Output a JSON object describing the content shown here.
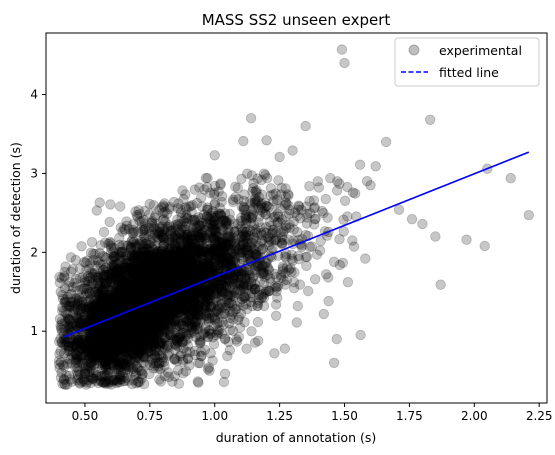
{
  "chart_data": {
    "type": "scatter",
    "title": "MASS SS2 unseen expert",
    "xlabel": "duration of annotation (s)",
    "ylabel": "duration of detection (s)",
    "xlim": [
      0.35,
      2.28
    ],
    "ylim": [
      0.09,
      4.78
    ],
    "x_ticks": [
      "0.50",
      "0.75",
      "1.00",
      "1.25",
      "1.50",
      "1.75",
      "2.00",
      "2.25"
    ],
    "y_ticks": [
      "1",
      "2",
      "3",
      "4"
    ],
    "grid": false,
    "legend_position": "top-right",
    "legend": [
      {
        "label": "experimental",
        "marker": "circle",
        "color": "#000000",
        "alpha": 0.25
      },
      {
        "label": "fitted line",
        "marker": "dashed-line",
        "color": "#0000ff"
      }
    ],
    "fitted_line": {
      "x": [
        0.42,
        2.21
      ],
      "y": [
        0.93,
        3.27
      ],
      "color": "#0000ff"
    },
    "cloud_regions": [
      {
        "x_center": 0.76,
        "y_center": 1.45,
        "x_spread": 0.16,
        "y_spread": 0.42,
        "count": 3200
      },
      {
        "x_center": 1.05,
        "y_center": 1.9,
        "x_spread": 0.2,
        "y_spread": 0.5,
        "count": 900
      },
      {
        "x_center": 0.6,
        "y_center": 0.95,
        "x_spread": 0.09,
        "y_spread": 0.28,
        "count": 700
      }
    ],
    "outliers": [
      {
        "x": 1.49,
        "y": 4.57
      },
      {
        "x": 1.5,
        "y": 4.4
      },
      {
        "x": 1.83,
        "y": 3.68
      },
      {
        "x": 1.35,
        "y": 3.6
      },
      {
        "x": 1.14,
        "y": 3.7
      },
      {
        "x": 1.66,
        "y": 3.4
      },
      {
        "x": 2.21,
        "y": 2.47
      },
      {
        "x": 2.05,
        "y": 3.06
      },
      {
        "x": 1.97,
        "y": 2.16
      },
      {
        "x": 2.04,
        "y": 2.08
      },
      {
        "x": 1.87,
        "y": 1.59
      },
      {
        "x": 1.53,
        "y": 2.15
      },
      {
        "x": 1.46,
        "y": 1.88
      },
      {
        "x": 1.42,
        "y": 1.22
      },
      {
        "x": 1.47,
        "y": 0.9
      },
      {
        "x": 1.46,
        "y": 0.6
      },
      {
        "x": 1.27,
        "y": 0.78
      },
      {
        "x": 1.23,
        "y": 0.72
      },
      {
        "x": 1.04,
        "y": 0.46
      },
      {
        "x": 0.98,
        "y": 0.5
      },
      {
        "x": 0.42,
        "y": 0.38
      },
      {
        "x": 0.45,
        "y": 0.36
      },
      {
        "x": 0.42,
        "y": 0.72
      },
      {
        "x": 0.41,
        "y": 1.02
      },
      {
        "x": 1.76,
        "y": 2.42
      },
      {
        "x": 1.8,
        "y": 2.36
      },
      {
        "x": 1.71,
        "y": 2.54
      },
      {
        "x": 1.62,
        "y": 3.09
      },
      {
        "x": 1.6,
        "y": 2.85
      },
      {
        "x": 1.56,
        "y": 3.11
      },
      {
        "x": 1.3,
        "y": 3.29
      },
      {
        "x": 1.2,
        "y": 3.42
      },
      {
        "x": 1.25,
        "y": 3.21
      },
      {
        "x": 1.11,
        "y": 3.41
      },
      {
        "x": 1.0,
        "y": 3.23
      },
      {
        "x": 2.14,
        "y": 2.94
      },
      {
        "x": 1.85,
        "y": 2.2
      },
      {
        "x": 1.58,
        "y": 1.92
      },
      {
        "x": 1.32,
        "y": 1.32
      },
      {
        "x": 1.36,
        "y": 1.51
      }
    ]
  }
}
